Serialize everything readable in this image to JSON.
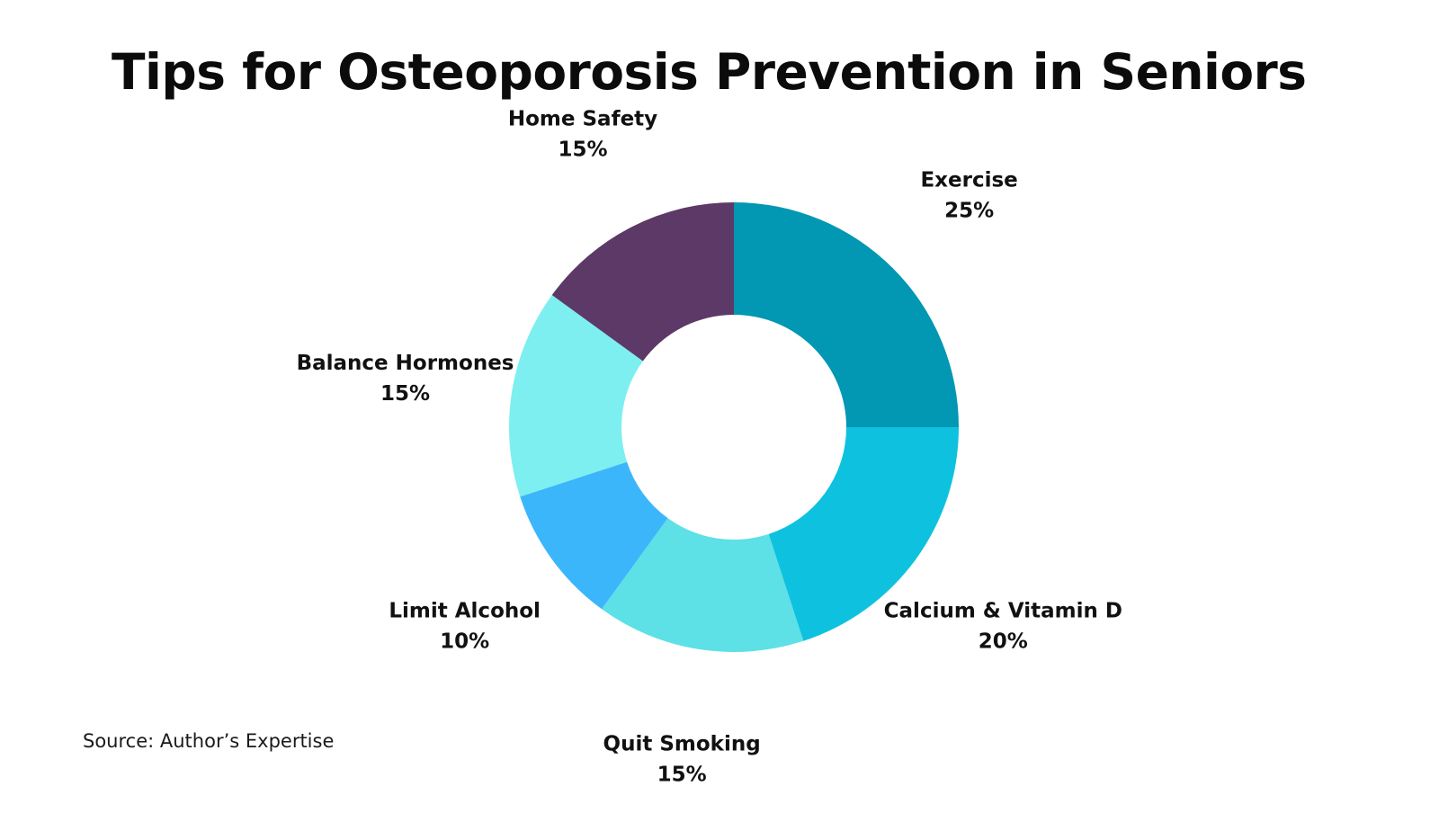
{
  "chart_data": {
    "type": "pie",
    "variant": "donut",
    "title": "Tips for Osteoporosis Prevention in Seniors",
    "source": "Source: Author’s Expertise",
    "start": "12 o'clock",
    "direction": "clockwise",
    "labels_outside": true,
    "slices": [
      {
        "label": "Exercise",
        "value": 25,
        "value_label": "25%",
        "color": "#0297b2"
      },
      {
        "label": "Calcium & Vitamin D",
        "value": 20,
        "value_label": "20%",
        "color": "#0ec2df"
      },
      {
        "label": "Quit Smoking",
        "value": 15,
        "value_label": "15%",
        "color": "#5de0e6"
      },
      {
        "label": "Limit Alcohol",
        "value": 10,
        "value_label": "10%",
        "color": "#3cb6fb"
      },
      {
        "label": "Balance Hormones",
        "value": 15,
        "value_label": "15%",
        "color": "#7deff0"
      },
      {
        "label": "Home Safety",
        "value": 15,
        "value_label": "15%",
        "color": "#5c3966"
      }
    ]
  }
}
